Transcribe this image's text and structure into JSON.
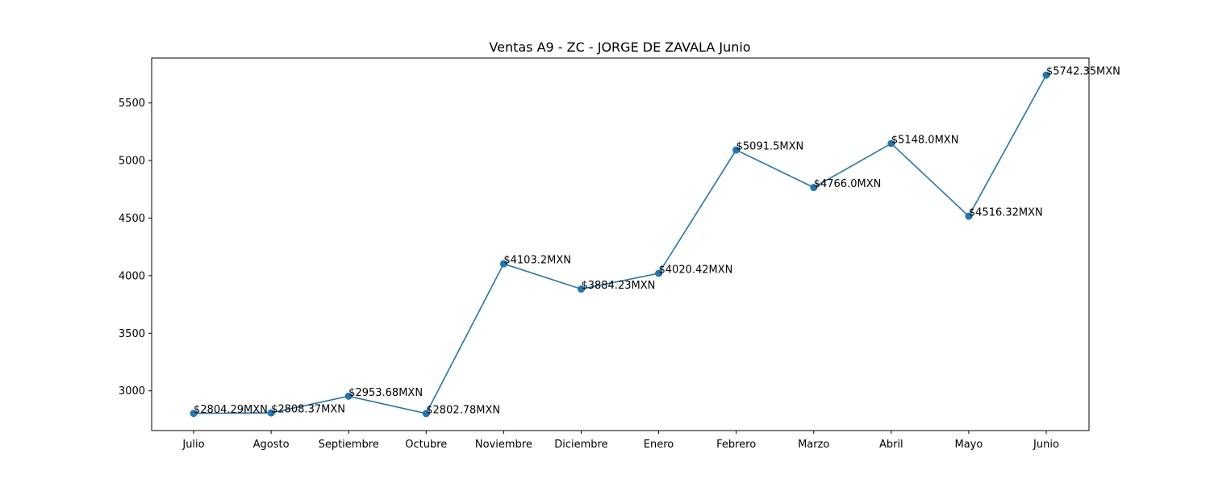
{
  "chart_data": {
    "type": "line",
    "title": "Ventas A9 - ZC - JORGE DE ZAVALA Junio",
    "xlabel": "",
    "ylabel": "",
    "categories": [
      "Julio",
      "Agosto",
      "Septiembre",
      "Octubre",
      "Noviembre",
      "Diciembre",
      "Enero",
      "Febrero",
      "Marzo",
      "Abril",
      "Mayo",
      "Junio"
    ],
    "values": [
      2804.29,
      2808.37,
      2953.68,
      2802.78,
      4103.2,
      3884.23,
      4020.42,
      5091.5,
      4766.0,
      5148.0,
      4516.32,
      5742.35
    ],
    "data_labels": [
      "$2804.29MXN",
      "$2808.37MXN",
      "$2953.68MXN",
      "$2802.78MXN",
      "$4103.2MXN",
      "$3884.23MXN",
      "$4020.42MXN",
      "$5091.5MXN",
      "$4766.0MXN",
      "$5148.0MXN",
      "$4516.32MXN",
      "$5742.35MXN"
    ],
    "yticks": [
      3000,
      3500,
      4000,
      4500,
      5000,
      5500
    ],
    "ylim": [
      2655,
      5890
    ],
    "grid": false,
    "color": "#1f77b4"
  }
}
